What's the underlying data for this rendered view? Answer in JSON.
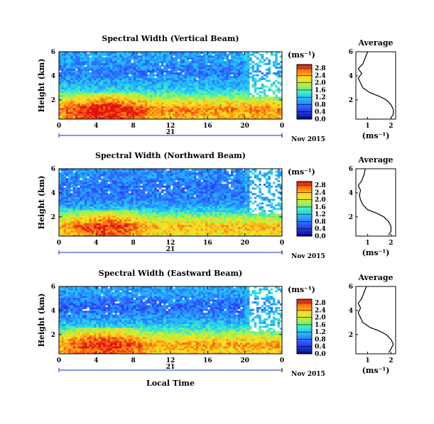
{
  "figure": {
    "date_label": "Nov 2015",
    "x_axis_label": "Local Time",
    "y_axis_label": "Height (km)",
    "unit_label": "(ms⁻¹)",
    "profile_xlabel": "(ms⁻¹)"
  },
  "chart_data": [
    {
      "type": "heatmap",
      "title": "Spectral Width (Vertical Beam)",
      "xlabel": "",
      "ylabel": "Height (km)",
      "xlim": [
        0,
        24
      ],
      "ylim": [
        0.4,
        6.0
      ],
      "xticks": [
        "0",
        "4",
        "8",
        "12",
        "16",
        "20",
        "0"
      ],
      "yticks": [
        "2",
        "4",
        "6"
      ],
      "day_label": "21",
      "colorbar": {
        "ticks": [
          "0.0",
          "0.4",
          "0.8",
          "1.2",
          "1.6",
          "2.0",
          "2.4",
          "2.8"
        ],
        "range": [
          0,
          3.0
        ]
      },
      "layers": [
        {
          "height_km": 0.6,
          "value_ms": 2.4
        },
        {
          "height_km": 1.2,
          "value_ms": 2.6
        },
        {
          "height_km": 1.8,
          "value_ms": 2.2
        },
        {
          "height_km": 2.4,
          "value_ms": 1.6
        },
        {
          "height_km": 3.0,
          "value_ms": 1.2
        },
        {
          "height_km": 3.6,
          "value_ms": 1.0
        },
        {
          "height_km": 4.2,
          "value_ms": 0.8
        },
        {
          "height_km": 4.8,
          "value_ms": 0.9
        },
        {
          "height_km": 5.4,
          "value_ms": 1.0
        }
      ],
      "profile": {
        "title": "Average",
        "xlim": [
          0.5,
          2.2
        ],
        "xticks": [
          "1",
          "2"
        ],
        "yticks": [
          "2",
          "4",
          "6"
        ],
        "points": [
          [
            2.0,
            0.5
          ],
          [
            2.1,
            0.8
          ],
          [
            2.1,
            1.2
          ],
          [
            2.0,
            1.6
          ],
          [
            1.8,
            2.0
          ],
          [
            1.5,
            2.3
          ],
          [
            1.1,
            2.6
          ],
          [
            0.8,
            3.0
          ],
          [
            0.7,
            3.4
          ],
          [
            0.6,
            3.8
          ],
          [
            0.75,
            4.2
          ],
          [
            0.6,
            4.6
          ],
          [
            0.8,
            5.0
          ],
          [
            0.9,
            5.5
          ],
          [
            1.0,
            6.0
          ]
        ]
      }
    },
    {
      "type": "heatmap",
      "title": "Spectral Width (Northward Beam)",
      "xlabel": "",
      "ylabel": "Height (km)",
      "xlim": [
        0,
        24
      ],
      "ylim": [
        0.4,
        6.0
      ],
      "xticks": [
        "0",
        "4",
        "8",
        "12",
        "16",
        "20",
        "0"
      ],
      "yticks": [
        "2",
        "4",
        "6"
      ],
      "day_label": "21",
      "colorbar": {
        "ticks": [
          "0.0",
          "0.4",
          "0.8",
          "1.2",
          "1.6",
          "2.0",
          "2.4",
          "2.8"
        ],
        "range": [
          0,
          3.0
        ]
      },
      "layers": [
        {
          "height_km": 0.6,
          "value_ms": 2.2
        },
        {
          "height_km": 1.2,
          "value_ms": 2.4
        },
        {
          "height_km": 1.8,
          "value_ms": 2.0
        },
        {
          "height_km": 2.4,
          "value_ms": 1.4
        },
        {
          "height_km": 3.0,
          "value_ms": 1.0
        },
        {
          "height_km": 3.6,
          "value_ms": 0.8
        },
        {
          "height_km": 4.2,
          "value_ms": 0.8
        },
        {
          "height_km": 4.8,
          "value_ms": 0.8
        },
        {
          "height_km": 5.4,
          "value_ms": 0.9
        }
      ],
      "profile": {
        "title": "Average",
        "xlim": [
          0.5,
          2.2
        ],
        "xticks": [
          "1",
          "2"
        ],
        "yticks": [
          "2",
          "4",
          "6"
        ],
        "points": [
          [
            1.9,
            0.5
          ],
          [
            2.0,
            0.8
          ],
          [
            2.0,
            1.2
          ],
          [
            1.9,
            1.6
          ],
          [
            1.7,
            2.0
          ],
          [
            1.4,
            2.3
          ],
          [
            1.0,
            2.6
          ],
          [
            0.8,
            3.0
          ],
          [
            0.7,
            3.4
          ],
          [
            0.65,
            3.8
          ],
          [
            0.7,
            4.2
          ],
          [
            0.6,
            4.6
          ],
          [
            0.75,
            5.0
          ],
          [
            0.85,
            5.5
          ],
          [
            0.9,
            6.0
          ]
        ]
      }
    },
    {
      "type": "heatmap",
      "title": "Spectral Width (Eastward Beam)",
      "xlabel": "Local Time",
      "ylabel": "Height (km)",
      "xlim": [
        0,
        24
      ],
      "ylim": [
        0.4,
        6.0
      ],
      "xticks": [
        "0",
        "4",
        "8",
        "12",
        "16",
        "20",
        "0"
      ],
      "yticks": [
        "2",
        "4",
        "6"
      ],
      "day_label": "21",
      "colorbar": {
        "ticks": [
          "0.0",
          "0.4",
          "0.8",
          "1.2",
          "1.6",
          "2.0",
          "2.4",
          "2.8"
        ],
        "range": [
          0,
          3.0
        ]
      },
      "layers": [
        {
          "height_km": 0.6,
          "value_ms": 2.3
        },
        {
          "height_km": 1.2,
          "value_ms": 2.5
        },
        {
          "height_km": 1.8,
          "value_ms": 2.1
        },
        {
          "height_km": 2.4,
          "value_ms": 1.5
        },
        {
          "height_km": 3.0,
          "value_ms": 1.1
        },
        {
          "height_km": 3.6,
          "value_ms": 0.9
        },
        {
          "height_km": 4.2,
          "value_ms": 0.7
        },
        {
          "height_km": 4.8,
          "value_ms": 0.8
        },
        {
          "height_km": 5.4,
          "value_ms": 1.0
        }
      ],
      "profile": {
        "title": "Average",
        "xlim": [
          0.5,
          2.2
        ],
        "xticks": [
          "1",
          "2"
        ],
        "yticks": [
          "2",
          "4",
          "6"
        ],
        "points": [
          [
            1.9,
            0.5
          ],
          [
            2.0,
            0.8
          ],
          [
            2.1,
            1.2
          ],
          [
            2.0,
            1.6
          ],
          [
            1.8,
            2.0
          ],
          [
            1.5,
            2.3
          ],
          [
            1.1,
            2.6
          ],
          [
            0.8,
            3.0
          ],
          [
            0.7,
            3.4
          ],
          [
            0.6,
            3.8
          ],
          [
            0.7,
            4.2
          ],
          [
            0.6,
            4.6
          ],
          [
            0.75,
            5.0
          ],
          [
            0.85,
            5.5
          ],
          [
            0.95,
            6.0
          ]
        ]
      }
    }
  ]
}
